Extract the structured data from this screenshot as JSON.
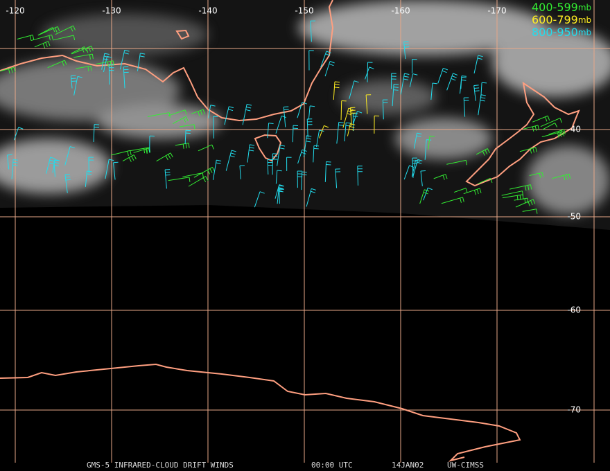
{
  "map": {
    "longitudes": [
      -120,
      -130,
      -140,
      -150,
      -160,
      -170
    ],
    "latitudes": [
      -40,
      -50,
      -60,
      -70
    ],
    "legend": [
      {
        "range": "400-599",
        "unit": "mb",
        "color": "#33ee33"
      },
      {
        "range": "600-799",
        "unit": "mb",
        "color": "#ffee22"
      },
      {
        "range": "800-950",
        "unit": "mb",
        "color": "#22ddee"
      }
    ],
    "footer": {
      "product": "GMS-5 INFRARED-CLOUD DRIFT WINDS",
      "time": "00:00 UTC",
      "date": "14JAN02",
      "source": "UW-CIMSS"
    }
  }
}
